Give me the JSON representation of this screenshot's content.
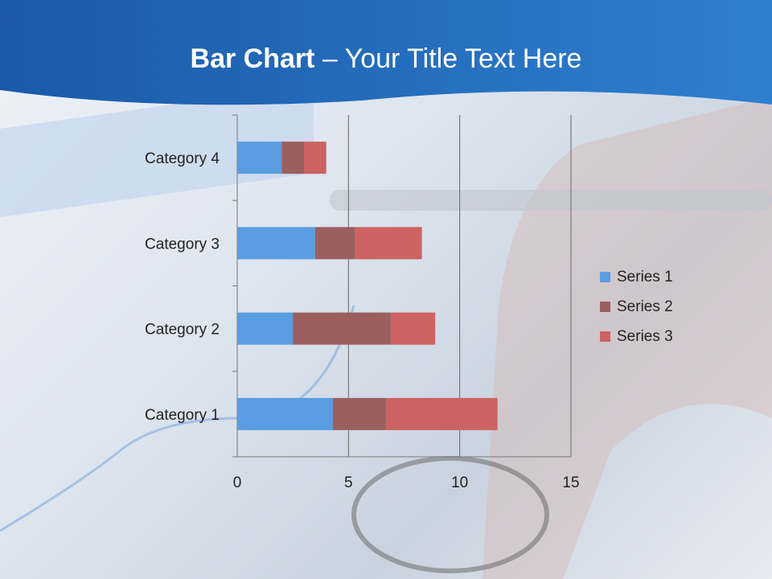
{
  "slide": {
    "title_bold": "Bar Chart",
    "title_dash": " – ",
    "title_rest": "Your Title Text Here"
  },
  "colors": {
    "header": "#1f63b0",
    "series": [
      "#5a9de0",
      "#9b5f5f",
      "#cd6262"
    ]
  },
  "chart_data": {
    "type": "bar",
    "orientation": "horizontal",
    "stacked": true,
    "categories": [
      "Category 1",
      "Category 2",
      "Category 3",
      "Category 4"
    ],
    "series": [
      {
        "name": "Series 1",
        "values": [
          4.3,
          2.5,
          3.5,
          2
        ]
      },
      {
        "name": "Series 2",
        "values": [
          2.4,
          4.4,
          1.8,
          1
        ]
      },
      {
        "name": "Series 3",
        "values": [
          5,
          2,
          3,
          1
        ]
      }
    ],
    "xticks": [
      0,
      5,
      10,
      15
    ],
    "xlim": [
      0,
      15
    ],
    "grid": true,
    "legend": "right"
  }
}
